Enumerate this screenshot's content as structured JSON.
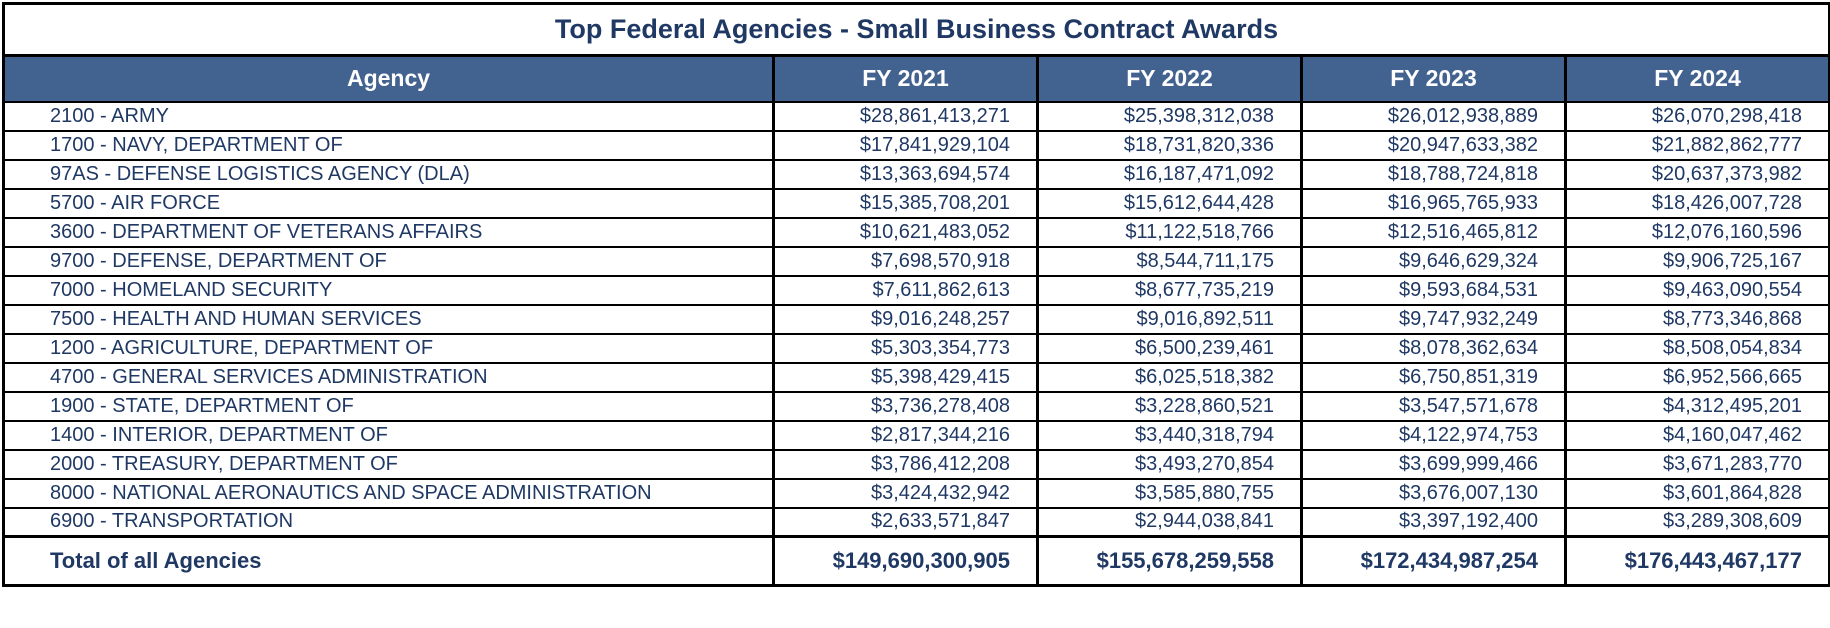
{
  "colors": {
    "header_background": "#42628F",
    "header_text": "#FFFFFF",
    "body_text": "#1F3864",
    "border": "#000000",
    "page_background": "#FFFFFF"
  },
  "chart_data": {
    "type": "table",
    "title": "Top Federal Agencies - Small Business Contract Awards",
    "columns": [
      "Agency",
      "FY 2021",
      "FY 2022",
      "FY 2023",
      "FY 2024"
    ],
    "rows": [
      [
        "2100 - ARMY",
        "$28,861,413,271",
        "$25,398,312,038",
        "$26,012,938,889",
        "$26,070,298,418"
      ],
      [
        "1700 - NAVY, DEPARTMENT OF",
        "$17,841,929,104",
        "$18,731,820,336",
        "$20,947,633,382",
        "$21,882,862,777"
      ],
      [
        "97AS - DEFENSE LOGISTICS AGENCY (DLA)",
        "$13,363,694,574",
        "$16,187,471,092",
        "$18,788,724,818",
        "$20,637,373,982"
      ],
      [
        "5700 - AIR FORCE",
        "$15,385,708,201",
        "$15,612,644,428",
        "$16,965,765,933",
        "$18,426,007,728"
      ],
      [
        "3600 - DEPARTMENT OF VETERANS AFFAIRS",
        "$10,621,483,052",
        "$11,122,518,766",
        "$12,516,465,812",
        "$12,076,160,596"
      ],
      [
        "9700 - DEFENSE, DEPARTMENT OF",
        "$7,698,570,918",
        "$8,544,711,175",
        "$9,646,629,324",
        "$9,906,725,167"
      ],
      [
        "7000 - HOMELAND SECURITY",
        "$7,611,862,613",
        "$8,677,735,219",
        "$9,593,684,531",
        "$9,463,090,554"
      ],
      [
        "7500 - HEALTH AND HUMAN SERVICES",
        "$9,016,248,257",
        "$9,016,892,511",
        "$9,747,932,249",
        "$8,773,346,868"
      ],
      [
        "1200 - AGRICULTURE, DEPARTMENT OF",
        "$5,303,354,773",
        "$6,500,239,461",
        "$8,078,362,634",
        "$8,508,054,834"
      ],
      [
        "4700 - GENERAL SERVICES ADMINISTRATION",
        "$5,398,429,415",
        "$6,025,518,382",
        "$6,750,851,319",
        "$6,952,566,665"
      ],
      [
        "1900 - STATE, DEPARTMENT OF",
        "$3,736,278,408",
        "$3,228,860,521",
        "$3,547,571,678",
        "$4,312,495,201"
      ],
      [
        "1400 - INTERIOR, DEPARTMENT OF",
        "$2,817,344,216",
        "$3,440,318,794",
        "$4,122,974,753",
        "$4,160,047,462"
      ],
      [
        "2000 - TREASURY, DEPARTMENT OF",
        "$3,786,412,208",
        "$3,493,270,854",
        "$3,699,999,466",
        "$3,671,283,770"
      ],
      [
        "8000 - NATIONAL AERONAUTICS AND SPACE ADMINISTRATION",
        "$3,424,432,942",
        "$3,585,880,755",
        "$3,676,007,130",
        "$3,601,864,828"
      ],
      [
        "6900 - TRANSPORTATION",
        "$2,633,571,847",
        "$2,944,038,841",
        "$3,397,192,400",
        "$3,289,308,609"
      ]
    ],
    "total_row": [
      "Total of all Agencies",
      "$149,690,300,905",
      "$155,678,259,558",
      "$172,434,987,254",
      "$176,443,467,177"
    ]
  }
}
